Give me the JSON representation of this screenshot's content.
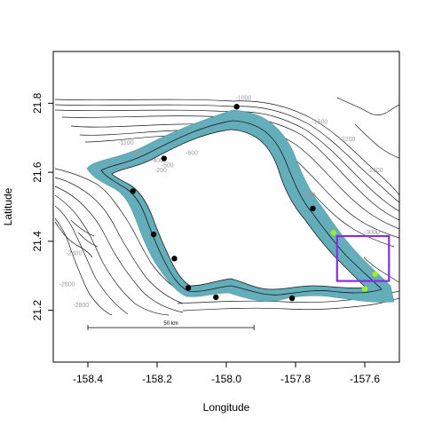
{
  "chart_data": {
    "type": "map",
    "xlabel": "Longitude",
    "ylabel": "Latitude",
    "xlim": [
      -158.5,
      -157.5
    ],
    "ylim": [
      21.05,
      21.95
    ],
    "x_ticks": [
      -158.4,
      -158.2,
      -158.0,
      -157.8,
      -157.6
    ],
    "x_tick_labels": [
      "-158.4",
      "-158.2",
      "-158.0",
      "-157.8",
      "-157.6"
    ],
    "y_ticks": [
      21.2,
      21.4,
      21.6,
      21.8
    ],
    "y_tick_labels": [
      "21.2",
      "21.4",
      "21.6",
      "21.8"
    ],
    "scale_bar": {
      "label": "50 km",
      "from_lon": -158.4,
      "to_lon": -157.92,
      "lat": 21.15
    },
    "contour_labels": [
      {
        "text": "-1000",
        "lon": -157.95,
        "lat": 21.81
      },
      {
        "text": "-1100",
        "lon": -158.29,
        "lat": 21.68
      },
      {
        "text": "-900",
        "lon": -158.26,
        "lat": 21.65
      },
      {
        "text": "-600",
        "lon": -158.1,
        "lat": 21.65
      },
      {
        "text": "-500",
        "lon": -158.17,
        "lat": 21.615
      },
      {
        "text": "-400",
        "lon": -158.2,
        "lat": 21.628
      },
      {
        "text": "-200",
        "lon": -158.19,
        "lat": 21.6
      },
      {
        "text": "-1500",
        "lon": -157.73,
        "lat": 21.74
      },
      {
        "text": "-2200",
        "lon": -157.65,
        "lat": 21.69
      },
      {
        "text": "-2600",
        "lon": -157.57,
        "lat": 21.6
      },
      {
        "text": "-900",
        "lon": -157.76,
        "lat": 21.53
      },
      {
        "text": "-2400",
        "lon": -158.44,
        "lat": 21.36
      },
      {
        "text": "-2600",
        "lon": -158.46,
        "lat": 21.27
      },
      {
        "text": "-2600",
        "lon": -158.42,
        "lat": 21.21
      },
      {
        "text": "-3000",
        "lon": -157.58,
        "lat": 21.42
      }
    ],
    "points": [
      {
        "lon": -157.97,
        "lat": 21.79,
        "color": "black"
      },
      {
        "lon": -158.18,
        "lat": 21.64,
        "color": "black"
      },
      {
        "lon": -158.27,
        "lat": 21.545,
        "color": "black"
      },
      {
        "lon": -157.75,
        "lat": 21.495,
        "color": "black"
      },
      {
        "lon": -158.21,
        "lat": 21.42,
        "color": "black"
      },
      {
        "lon": -158.15,
        "lat": 21.35,
        "color": "black"
      },
      {
        "lon": -158.11,
        "lat": 21.265,
        "color": "black"
      },
      {
        "lon": -158.03,
        "lat": 21.238,
        "color": "black"
      },
      {
        "lon": -157.81,
        "lat": 21.235,
        "color": "black"
      },
      {
        "lon": -157.69,
        "lat": 21.425,
        "color": "lime"
      },
      {
        "lon": -157.57,
        "lat": 21.305,
        "color": "lime"
      },
      {
        "lon": -157.6,
        "lat": 21.262,
        "color": "lime"
      }
    ],
    "study_box": {
      "lon": [
        -157.68,
        -157.53
      ],
      "lat": [
        21.285,
        21.415
      ],
      "color": "#8a2be2"
    },
    "shelf_color": "#64aebb",
    "point_colors": {
      "black": "#000000",
      "lime": "#9ef01a"
    }
  }
}
